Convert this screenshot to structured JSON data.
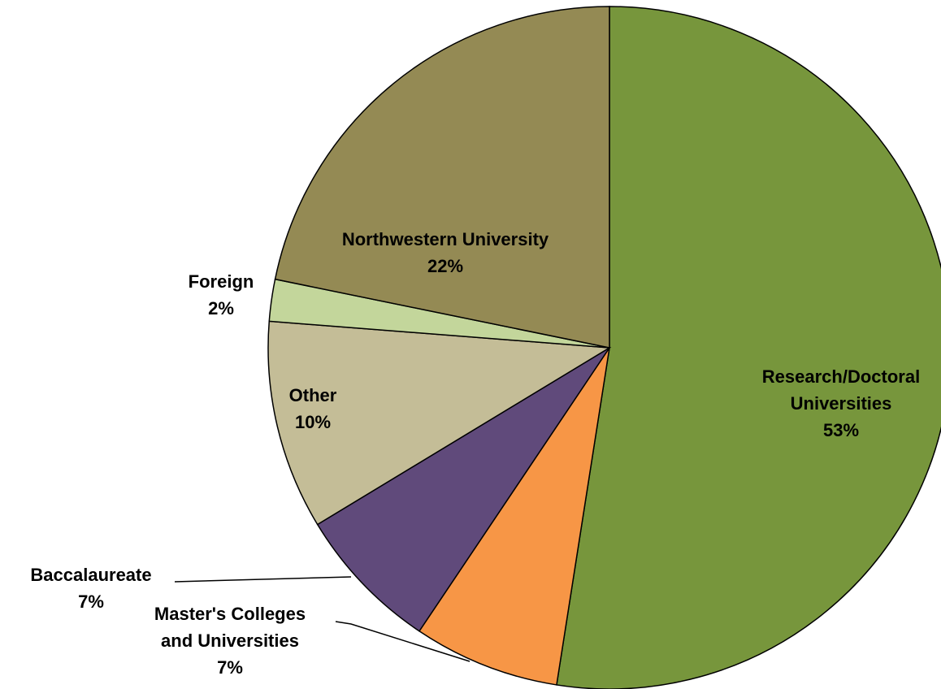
{
  "chart_data": {
    "type": "pie",
    "categories": [
      "Research/Doctoral\nUniversities",
      "Master's Colleges\nand Universities",
      "Baccalaureate",
      "Other",
      "Foreign",
      "Northwestern University"
    ],
    "values": [
      53,
      7,
      7,
      10,
      2,
      22
    ],
    "value_labels": [
      "53%",
      "7%",
      "7%",
      "10%",
      "2%",
      "22%"
    ],
    "colors": [
      "#77963c",
      "#f79646",
      "#604a7b",
      "#c4bd97",
      "#c3d69b",
      "#948a54"
    ]
  }
}
